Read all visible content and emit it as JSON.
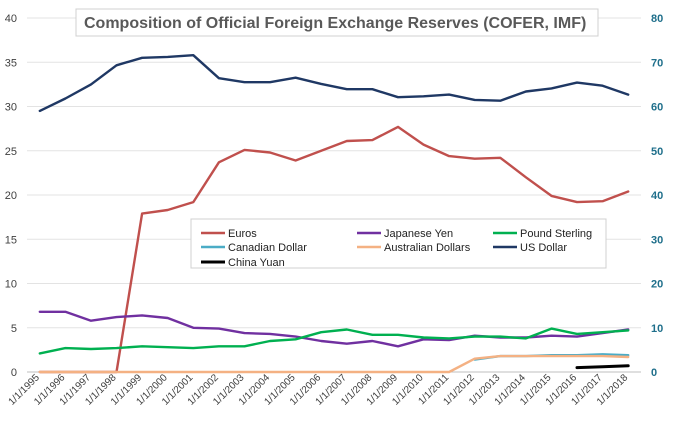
{
  "chart_data": {
    "type": "line",
    "title": "Composition  of Official Foreign Exchange Reserves (COFER, IMF)",
    "x": [
      "1/1/1995",
      "1/1/1996",
      "1/1/1997",
      "1/1/1998",
      "1/1/1999",
      "1/1/2000",
      "1/1/2001",
      "1/1/2002",
      "1/1/2003",
      "1/1/2004",
      "1/1/2005",
      "1/1/2006",
      "1/1/2007",
      "1/1/2008",
      "1/1/2009",
      "1/1/2010",
      "1/1/2011",
      "1/1/2012",
      "1/1/2013",
      "1/1/2014",
      "1/1/2015",
      "1/1/2016",
      "1/1/2017",
      "1/1/2018"
    ],
    "y_left": {
      "min": 0,
      "max": 40,
      "ticks": [
        0,
        5,
        10,
        15,
        20,
        25,
        30,
        35,
        40
      ]
    },
    "y_right": {
      "min": 0,
      "max": 80,
      "ticks": [
        0,
        10,
        20,
        30,
        40,
        50,
        60,
        70,
        80
      ]
    },
    "grid": true,
    "legend_placement": "center-right",
    "series": [
      {
        "name": "Euros",
        "axis": "left",
        "color": "#c0504d",
        "values": [
          0,
          0,
          0,
          0,
          17.9,
          18.3,
          19.2,
          23.7,
          25.1,
          24.8,
          23.9,
          25.0,
          26.1,
          26.2,
          27.7,
          25.7,
          24.4,
          24.1,
          24.2,
          22.0,
          19.9,
          19.2,
          19.3,
          20.4
        ]
      },
      {
        "name": "Japanese Yen",
        "axis": "left",
        "color": "#7030a0",
        "values": [
          6.8,
          6.8,
          5.8,
          6.2,
          6.4,
          6.1,
          5.0,
          4.9,
          4.4,
          4.3,
          4.0,
          3.5,
          3.2,
          3.5,
          2.9,
          3.7,
          3.6,
          4.1,
          3.9,
          3.9,
          4.1,
          4.0,
          4.4,
          4.8
        ]
      },
      {
        "name": "Pound Sterling",
        "axis": "left",
        "color": "#00b050",
        "values": [
          2.1,
          2.7,
          2.6,
          2.7,
          2.9,
          2.8,
          2.7,
          2.9,
          2.9,
          3.5,
          3.7,
          4.5,
          4.8,
          4.2,
          4.2,
          3.9,
          3.8,
          4.0,
          4.0,
          3.8,
          4.9,
          4.3,
          4.5,
          4.7
        ]
      },
      {
        "name": "Canadian Dollar",
        "axis": "left",
        "color": "#4bacc6",
        "values": [
          null,
          null,
          null,
          null,
          null,
          null,
          null,
          null,
          null,
          null,
          null,
          null,
          null,
          null,
          null,
          null,
          null,
          1.4,
          1.8,
          1.8,
          1.9,
          1.9,
          2.0,
          1.9
        ]
      },
      {
        "name": "Australian Dollars",
        "axis": "left",
        "color": "#f4b183",
        "values": [
          0,
          0,
          0,
          0,
          0,
          0,
          0,
          0,
          0,
          0,
          0,
          0,
          0,
          0,
          0,
          0,
          0,
          1.5,
          1.8,
          1.8,
          1.8,
          1.8,
          1.8,
          1.7
        ]
      },
      {
        "name": "US Dollar",
        "axis": "right",
        "color": "#1f3864",
        "values": [
          59,
          61.8,
          65,
          69.3,
          71,
          71.2,
          71.6,
          66.4,
          65.5,
          65.5,
          66.5,
          65.1,
          63.9,
          63.9,
          62.1,
          62.3,
          62.7,
          61.5,
          61.3,
          63.4,
          64.1,
          65.4,
          64.7,
          62.7
        ]
      },
      {
        "name": "China Yuan",
        "axis": "left",
        "color": "#000000",
        "values": [
          null,
          null,
          null,
          null,
          null,
          null,
          null,
          null,
          null,
          null,
          null,
          null,
          null,
          null,
          null,
          null,
          null,
          null,
          null,
          null,
          null,
          0.5,
          0.6,
          0.7
        ]
      }
    ]
  }
}
